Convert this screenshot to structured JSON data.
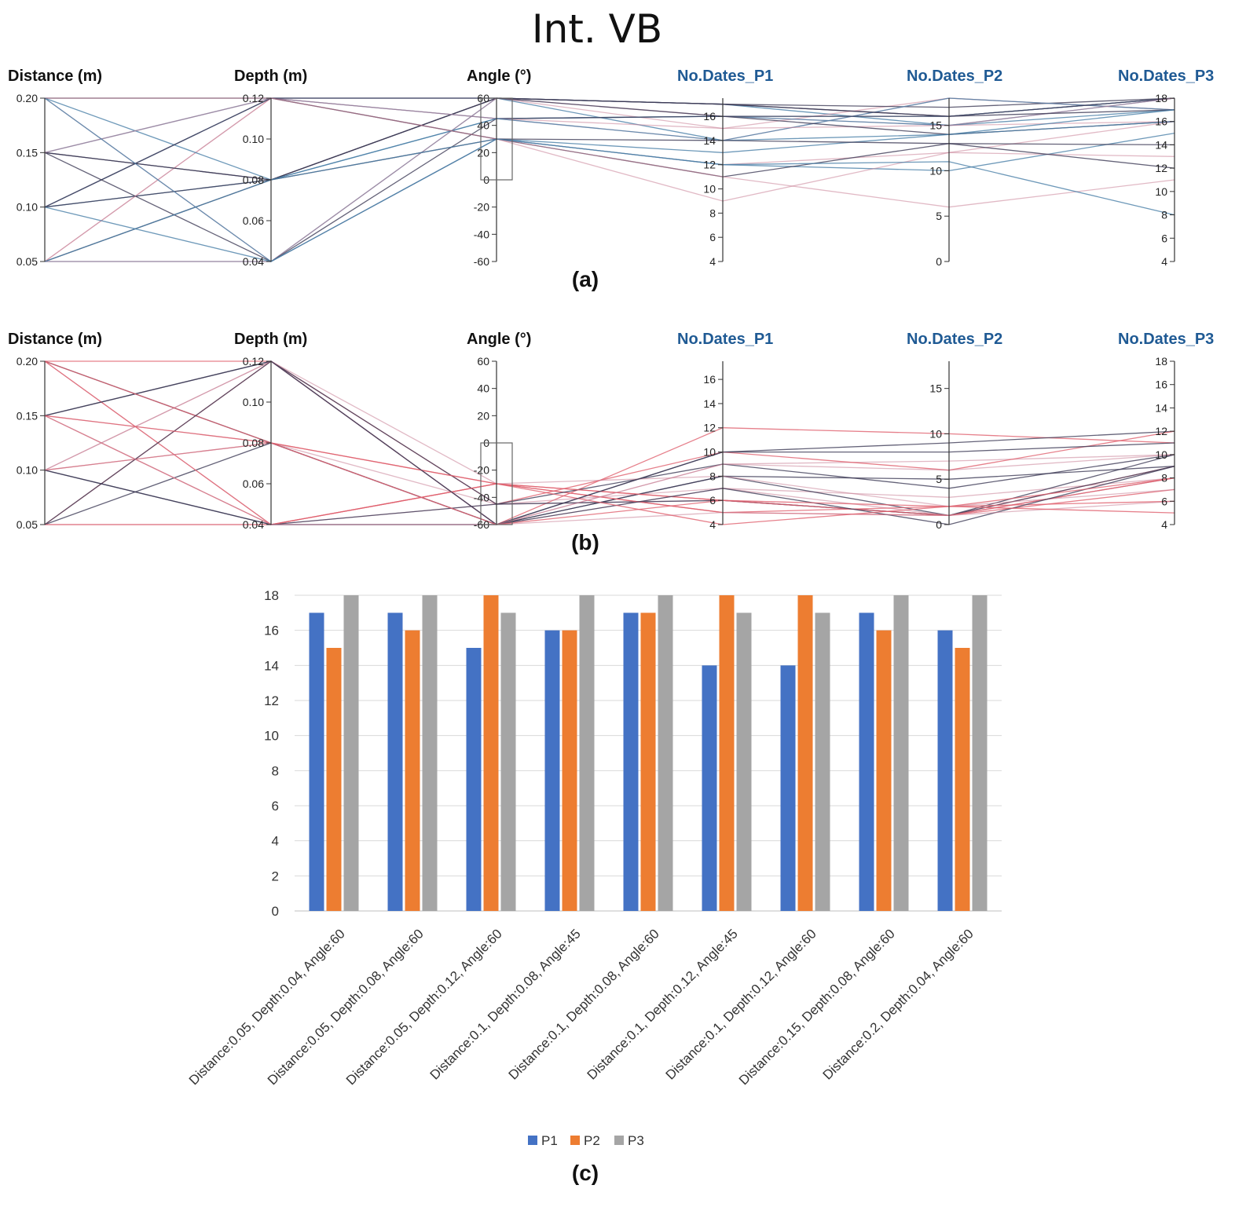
{
  "title": "Int. VB",
  "colors": {
    "axis_black": "#111111",
    "axis_blue": "#1f5a94",
    "line_blue": "#4a7fa8",
    "line_dark": "#3d3b56",
    "line_red": "#e0606e",
    "line_pink": "#c87f95",
    "bar_p1": "#4472c4",
    "bar_p2": "#ed7d31",
    "bar_p3": "#a5a5a5"
  },
  "chart_data": [
    {
      "type": "parallel-coordinates",
      "panel_label": "(a)",
      "axes": [
        {
          "name": "Distance (m)",
          "range": [
            0.05,
            0.2
          ],
          "ticks": [
            "0.20",
            "0.15",
            "0.10",
            "0.05"
          ],
          "tick_values": [
            0.2,
            0.15,
            0.1,
            0.05
          ]
        },
        {
          "name": "Depth (m)",
          "range": [
            0.04,
            0.12
          ],
          "ticks": [
            "0.12",
            "0.10",
            "0.08",
            "0.06",
            "0.04"
          ],
          "tick_values": [
            0.12,
            0.1,
            0.08,
            0.06,
            0.04
          ]
        },
        {
          "name": "Angle (°)",
          "range": [
            -60,
            60
          ],
          "ticks": [
            "60",
            "40",
            "20",
            "0",
            "-20",
            "-40",
            "-60"
          ],
          "tick_values": [
            60,
            40,
            20,
            0,
            -20,
            -40,
            -60
          ]
        },
        {
          "name": "No.Dates_P1",
          "range": [
            4,
            17.5
          ],
          "ticks": [
            "16",
            "14",
            "12",
            "10",
            "8",
            "6",
            "4"
          ],
          "tick_values": [
            16,
            14,
            12,
            10,
            8,
            6,
            4
          ]
        },
        {
          "name": "No.Dates_P2",
          "range": [
            0,
            18
          ],
          "ticks": [
            "15",
            "10",
            "5",
            "0"
          ],
          "tick_values": [
            15,
            10,
            5,
            0
          ]
        },
        {
          "name": "No.Dates_P3",
          "range": [
            4,
            18
          ],
          "ticks": [
            "18",
            "16",
            "14",
            "12",
            "10",
            "8",
            "6",
            "4"
          ],
          "tick_values": [
            18,
            16,
            14,
            12,
            10,
            8,
            6,
            4
          ]
        }
      ],
      "brush": {
        "axis": "Angle (°)",
        "range": [
          0,
          60
        ]
      },
      "lines": [
        [
          0.05,
          0.04,
          60,
          17,
          15,
          18
        ],
        [
          0.05,
          0.08,
          60,
          17,
          16,
          18
        ],
        [
          0.05,
          0.12,
          60,
          15,
          18,
          17
        ],
        [
          0.1,
          0.08,
          45,
          16,
          16,
          18
        ],
        [
          0.1,
          0.08,
          60,
          17,
          17,
          18
        ],
        [
          0.1,
          0.12,
          45,
          14,
          18,
          17
        ],
        [
          0.1,
          0.12,
          60,
          14,
          18,
          17
        ],
        [
          0.15,
          0.08,
          60,
          17,
          16,
          18
        ],
        [
          0.2,
          0.04,
          60,
          16,
          15,
          18
        ],
        [
          0.15,
          0.12,
          45,
          16,
          15,
          17
        ],
        [
          0.15,
          0.04,
          45,
          16,
          16,
          17
        ],
        [
          0.05,
          0.12,
          45,
          15,
          15,
          16
        ],
        [
          0.2,
          0.08,
          45,
          14,
          14,
          17
        ],
        [
          0.2,
          0.12,
          60,
          16,
          14,
          16
        ],
        [
          0.05,
          0.04,
          30,
          12,
          12,
          16
        ],
        [
          0.1,
          0.04,
          30,
          12,
          10,
          15
        ],
        [
          0.15,
          0.08,
          30,
          11,
          13,
          14
        ],
        [
          0.2,
          0.12,
          30,
          9,
          12,
          13
        ],
        [
          0.05,
          0.08,
          30,
          13,
          14,
          16
        ],
        [
          0.1,
          0.12,
          30,
          14,
          13,
          12
        ],
        [
          0.15,
          0.12,
          30,
          11,
          6,
          11
        ],
        [
          0.2,
          0.04,
          30,
          12,
          11,
          8
        ]
      ]
    },
    {
      "type": "parallel-coordinates",
      "panel_label": "(b)",
      "axes": [
        {
          "name": "Distance (m)",
          "range": [
            0.05,
            0.2
          ],
          "ticks": [
            "0.20",
            "0.15",
            "0.10",
            "0.05"
          ],
          "tick_values": [
            0.2,
            0.15,
            0.1,
            0.05
          ]
        },
        {
          "name": "Depth (m)",
          "range": [
            0.04,
            0.12
          ],
          "ticks": [
            "0.12",
            "0.10",
            "0.08",
            "0.06",
            "0.04"
          ],
          "tick_values": [
            0.12,
            0.1,
            0.08,
            0.06,
            0.04
          ]
        },
        {
          "name": "Angle (°)",
          "range": [
            -60,
            60
          ],
          "ticks": [
            "60",
            "40",
            "20",
            "0",
            "-20",
            "-40",
            "-60"
          ],
          "tick_values": [
            60,
            40,
            20,
            0,
            -20,
            -40,
            -60
          ]
        },
        {
          "name": "No.Dates_P1",
          "range": [
            4,
            17.5
          ],
          "ticks": [
            "16",
            "14",
            "12",
            "10",
            "8",
            "6",
            "4"
          ],
          "tick_values": [
            16,
            14,
            12,
            10,
            8,
            6,
            4
          ]
        },
        {
          "name": "No.Dates_P2",
          "range": [
            0,
            18
          ],
          "ticks": [
            "15",
            "10",
            "5",
            "0"
          ],
          "tick_values": [
            15,
            10,
            5,
            0
          ]
        },
        {
          "name": "No.Dates_P3",
          "range": [
            4,
            18
          ],
          "ticks": [
            "18",
            "16",
            "14",
            "12",
            "10",
            "8",
            "6",
            "4"
          ],
          "tick_values": [
            18,
            16,
            14,
            12,
            10,
            8,
            6,
            4
          ]
        }
      ],
      "brush": {
        "axis": "Angle (°)",
        "range": [
          -60,
          0
        ]
      },
      "lines": [
        [
          0.2,
          0.12,
          -60,
          12,
          10,
          11
        ],
        [
          0.15,
          0.12,
          -60,
          10,
          9,
          12
        ],
        [
          0.1,
          0.12,
          -60,
          9,
          7,
          10
        ],
        [
          0.05,
          0.12,
          -45,
          10,
          6,
          12
        ],
        [
          0.2,
          0.08,
          -60,
          8,
          5,
          9
        ],
        [
          0.15,
          0.08,
          -45,
          7,
          3,
          8
        ],
        [
          0.1,
          0.08,
          -30,
          6,
          1,
          9
        ],
        [
          0.05,
          0.08,
          -60,
          8,
          1,
          10
        ],
        [
          0.2,
          0.04,
          -45,
          6,
          1,
          8
        ],
        [
          0.15,
          0.04,
          -30,
          5,
          1,
          7
        ],
        [
          0.1,
          0.04,
          -45,
          6,
          1,
          9
        ],
        [
          0.05,
          0.04,
          -60,
          7,
          1,
          8
        ],
        [
          0.2,
          0.04,
          -30,
          5,
          2,
          6
        ],
        [
          0.15,
          0.12,
          -45,
          9,
          4,
          10
        ],
        [
          0.1,
          0.12,
          -30,
          8,
          2,
          7
        ],
        [
          0.05,
          0.04,
          -30,
          6,
          1,
          8
        ],
        [
          0.1,
          0.04,
          -60,
          7,
          0,
          9
        ],
        [
          0.15,
          0.04,
          -60,
          5,
          1,
          6
        ],
        [
          0.2,
          0.08,
          -30,
          4,
          2,
          5
        ],
        [
          0.05,
          0.12,
          -60,
          10,
          8,
          11
        ],
        [
          0.1,
          0.08,
          -60,
          9,
          6,
          10
        ],
        [
          0.15,
          0.08,
          -60,
          6,
          2,
          8
        ]
      ]
    },
    {
      "type": "bar",
      "panel_label": "(c)",
      "categories": [
        "Distance:0.05, Depth:0.04, Angle:60",
        "Distance:0.05, Depth:0.08, Angle:60",
        "Distance:0.05, Depth:0.12, Angle:60",
        "Distance:0.1, Depth:0.08, Angle:45",
        "Distance:0.1, Depth:0.08, Angle:60",
        "Distance:0.1, Depth:0.12, Angle:45",
        "Distance:0.1, Depth:0.12, Angle:60",
        "Distance:0.15, Depth:0.08, Angle:60",
        "Distance:0.2, Depth:0.04, Angle:60"
      ],
      "series": [
        {
          "name": "P1",
          "values": [
            17,
            17,
            15,
            16,
            17,
            14,
            14,
            17,
            16
          ]
        },
        {
          "name": "P2",
          "values": [
            15,
            16,
            18,
            16,
            17,
            18,
            18,
            16,
            15
          ]
        },
        {
          "name": "P3",
          "values": [
            18,
            18,
            17,
            18,
            18,
            17,
            17,
            18,
            18
          ]
        }
      ],
      "ylim": [
        0,
        18
      ],
      "yticks": [
        0,
        2,
        4,
        6,
        8,
        10,
        12,
        14,
        16,
        18
      ],
      "grid": true,
      "legend": "bottom"
    }
  ]
}
